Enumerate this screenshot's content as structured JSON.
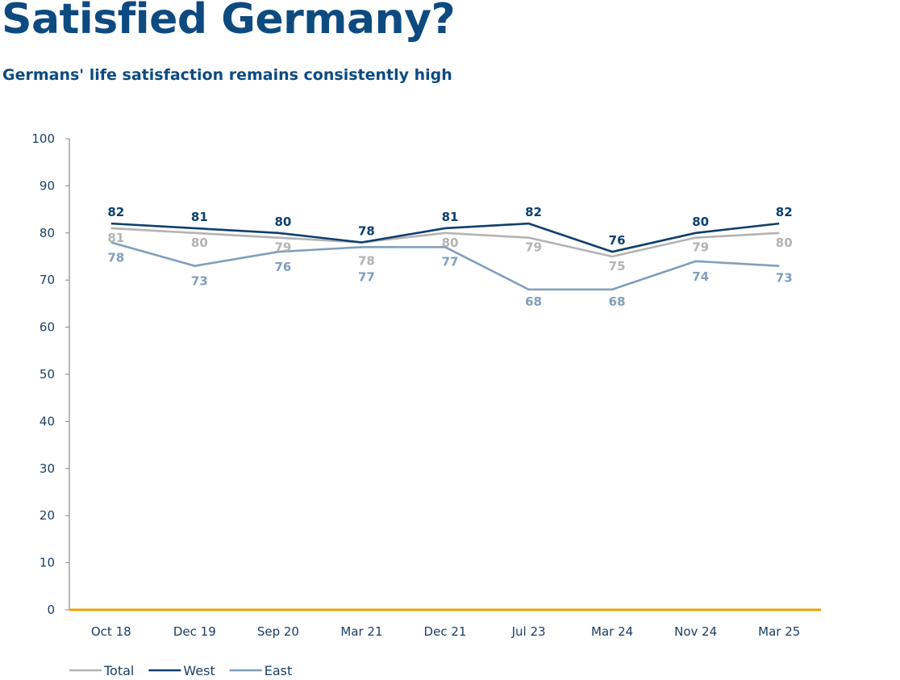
{
  "title": "Satisfied Germany?",
  "subtitle": "Germans' life satisfaction remains consistently high",
  "chart_data": {
    "type": "line",
    "categories": [
      "Oct 18",
      "Dec 19",
      "Sep 20",
      "Mar 21",
      "Dec 21",
      "Jul 23",
      "Mar 24",
      "Nov 24",
      "Mar 25"
    ],
    "ylim": [
      0,
      100
    ],
    "yticks": [
      0,
      10,
      20,
      30,
      40,
      50,
      60,
      70,
      80,
      90,
      100
    ],
    "grid": false,
    "legend": "bottom-left",
    "series": [
      {
        "name": "Total",
        "color": "#b3b3b3",
        "values": [
          81,
          80,
          79,
          78,
          80,
          79,
          75,
          79,
          80
        ]
      },
      {
        "name": "West",
        "color": "#0d3f6e",
        "values": [
          82,
          81,
          80,
          78,
          81,
          82,
          76,
          80,
          82
        ]
      },
      {
        "name": "East",
        "color": "#7f9fbd",
        "values": [
          78,
          73,
          76,
          77,
          77,
          68,
          68,
          74,
          73
        ]
      }
    ],
    "xaxis_color": "#f0a100"
  }
}
